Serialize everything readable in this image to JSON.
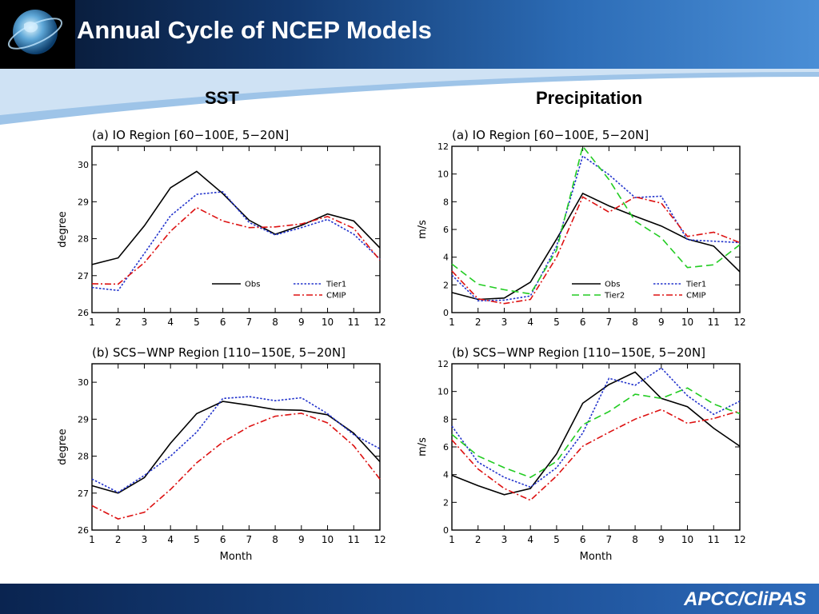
{
  "header": {
    "title": "Annual Cycle of NCEP Models"
  },
  "columns": {
    "left": "SST",
    "right": "Precipitation"
  },
  "footer": {
    "brand": "APCC/CliPAS"
  },
  "chart_data": [
    {
      "type": "line",
      "title": "(a) IO Region [60−100E, 5−20N]",
      "xlabel": "",
      "ylabel": "degree",
      "x": [
        1,
        2,
        3,
        4,
        5,
        6,
        7,
        8,
        9,
        10,
        11,
        12
      ],
      "xlim": [
        1,
        12
      ],
      "ylim": [
        26,
        30.5
      ],
      "yticks": [
        26,
        27,
        28,
        29,
        30
      ],
      "legend_position": "bottom-right",
      "series": [
        {
          "name": "Obs",
          "color": "#000000",
          "style": "solid",
          "values": [
            27.3,
            27.48,
            28.35,
            29.38,
            29.82,
            29.22,
            28.5,
            28.12,
            28.36,
            28.67,
            28.48,
            27.75
          ]
        },
        {
          "name": "Tier1",
          "color": "#2233cc",
          "style": "dot",
          "values": [
            26.68,
            26.6,
            27.6,
            28.62,
            29.2,
            29.27,
            28.44,
            28.1,
            28.3,
            28.52,
            28.12,
            27.45
          ]
        },
        {
          "name": "CMIP",
          "color": "#dd1111",
          "style": "dashdot",
          "values": [
            26.78,
            26.77,
            27.35,
            28.2,
            28.84,
            28.48,
            28.3,
            28.32,
            28.4,
            28.6,
            28.28,
            27.42
          ]
        }
      ]
    },
    {
      "type": "line",
      "title": "(b) SCS−WNP Region [110−150E, 5−20N]",
      "xlabel": "Month",
      "ylabel": "degree",
      "x": [
        1,
        2,
        3,
        4,
        5,
        6,
        7,
        8,
        9,
        10,
        11,
        12
      ],
      "xlim": [
        1,
        12
      ],
      "ylim": [
        26,
        30.5
      ],
      "yticks": [
        26,
        27,
        28,
        29,
        30
      ],
      "series": [
        {
          "name": "Obs",
          "color": "#000000",
          "style": "solid",
          "values": [
            27.2,
            27.0,
            27.42,
            28.35,
            29.15,
            29.48,
            29.38,
            29.26,
            29.24,
            29.12,
            28.62,
            27.85
          ]
        },
        {
          "name": "Tier1",
          "color": "#2233cc",
          "style": "dot",
          "values": [
            27.38,
            27.02,
            27.48,
            28.0,
            28.65,
            29.56,
            29.61,
            29.5,
            29.58,
            29.15,
            28.58,
            28.2
          ]
        },
        {
          "name": "CMIP",
          "color": "#dd1111",
          "style": "dashdot",
          "values": [
            26.66,
            26.3,
            26.48,
            27.1,
            27.82,
            28.38,
            28.8,
            29.08,
            29.16,
            28.9,
            28.28,
            27.38
          ]
        }
      ]
    },
    {
      "type": "line",
      "title": "(a) IO Region [60−100E, 5−20N]",
      "xlabel": "",
      "ylabel": "m/s",
      "x": [
        1,
        2,
        3,
        4,
        5,
        6,
        7,
        8,
        9,
        10,
        11,
        12
      ],
      "xlim": [
        1,
        12
      ],
      "ylim": [
        0,
        12
      ],
      "yticks": [
        0,
        2,
        4,
        6,
        8,
        10,
        12
      ],
      "legend_position": "bottom-right",
      "series": [
        {
          "name": "Obs",
          "color": "#000000",
          "style": "solid",
          "values": [
            1.45,
            0.95,
            1.05,
            2.2,
            5.3,
            8.6,
            7.7,
            6.95,
            6.25,
            5.3,
            4.8,
            2.95
          ]
        },
        {
          "name": "Tier1",
          "color": "#2233cc",
          "style": "dot",
          "values": [
            2.7,
            0.85,
            0.9,
            1.2,
            4.8,
            11.3,
            9.95,
            8.3,
            8.4,
            5.25,
            5.15,
            5.05
          ]
        },
        {
          "name": "Tier2",
          "color": "#22cc22",
          "style": "dash",
          "values": [
            3.5,
            2.05,
            1.65,
            1.35,
            4.5,
            12.0,
            9.6,
            6.6,
            5.4,
            3.25,
            3.45,
            4.9
          ]
        },
        {
          "name": "CMIP",
          "color": "#dd1111",
          "style": "dashdot",
          "values": [
            3.0,
            1.0,
            0.65,
            0.95,
            4.0,
            8.35,
            7.25,
            8.35,
            7.9,
            5.5,
            5.8,
            5.05
          ]
        }
      ]
    },
    {
      "type": "line",
      "title": "(b) SCS−WNP Region [110−150E, 5−20N]",
      "xlabel": "Month",
      "ylabel": "m/s",
      "x": [
        1,
        2,
        3,
        4,
        5,
        6,
        7,
        8,
        9,
        10,
        11,
        12
      ],
      "xlim": [
        1,
        12
      ],
      "ylim": [
        0,
        12
      ],
      "yticks": [
        0,
        2,
        4,
        6,
        8,
        10,
        12
      ],
      "series": [
        {
          "name": "Obs",
          "color": "#000000",
          "style": "solid",
          "values": [
            3.95,
            3.2,
            2.55,
            3.0,
            5.5,
            9.15,
            10.5,
            11.4,
            9.5,
            8.9,
            7.35,
            6.05
          ]
        },
        {
          "name": "Tier1",
          "color": "#2233cc",
          "style": "dot",
          "values": [
            7.5,
            4.9,
            3.8,
            3.1,
            4.5,
            7.0,
            10.95,
            10.45,
            11.7,
            9.7,
            8.35,
            9.3
          ]
        },
        {
          "name": "Tier2",
          "color": "#22cc22",
          "style": "dash",
          "values": [
            6.9,
            5.35,
            4.5,
            3.8,
            4.95,
            7.6,
            8.55,
            9.8,
            9.5,
            10.25,
            9.1,
            8.4
          ]
        },
        {
          "name": "CMIP",
          "color": "#dd1111",
          "style": "dashdot",
          "values": [
            6.5,
            4.4,
            3.0,
            2.15,
            3.9,
            6.05,
            7.05,
            8.0,
            8.7,
            7.7,
            8.05,
            8.6
          ]
        }
      ]
    }
  ]
}
